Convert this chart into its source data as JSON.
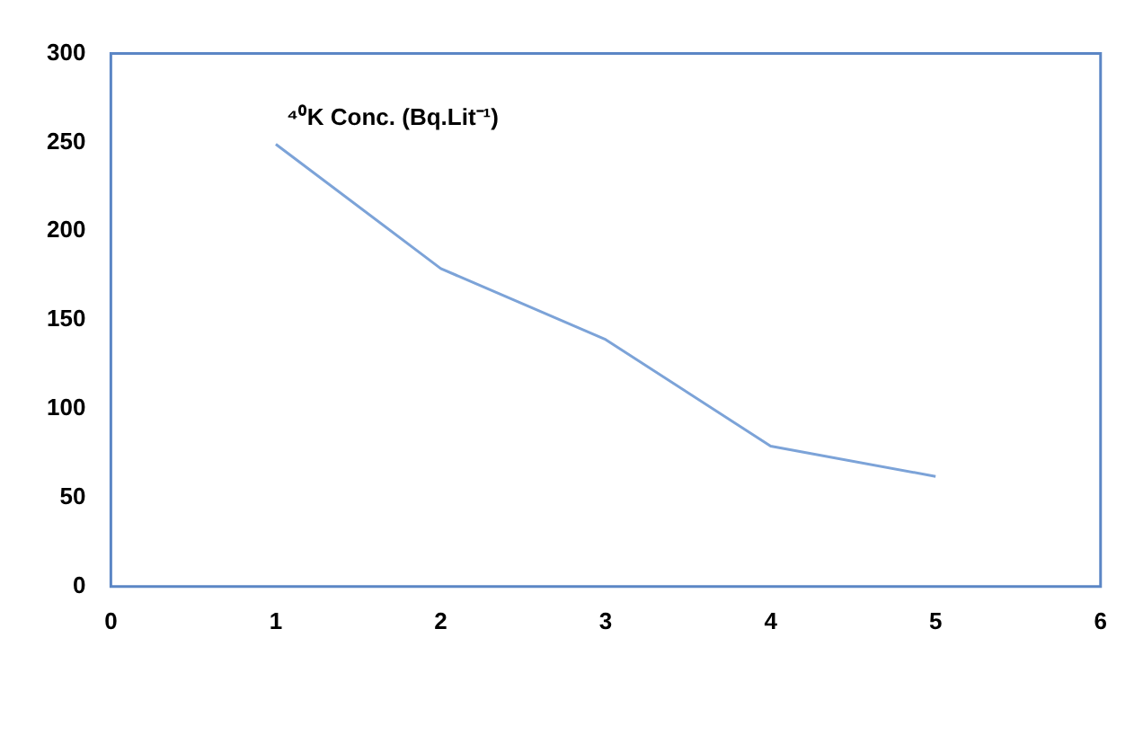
{
  "chart_data": {
    "type": "line",
    "x": [
      1,
      2,
      3,
      4,
      5
    ],
    "series": [
      {
        "name": "⁴⁰K Conc. (Bq.Lit⁻¹)",
        "color": "#7ca3d8",
        "values": [
          249,
          179,
          139,
          79,
          62
        ]
      }
    ],
    "xlim": [
      0,
      6
    ],
    "xticks": [
      0,
      1,
      2,
      3,
      4,
      5,
      6
    ],
    "ylim": [
      0,
      300
    ],
    "yticks": [
      0,
      50,
      100,
      150,
      200,
      250,
      300
    ],
    "grid": false,
    "legend": false,
    "marker": "none",
    "line_style": "solid"
  }
}
